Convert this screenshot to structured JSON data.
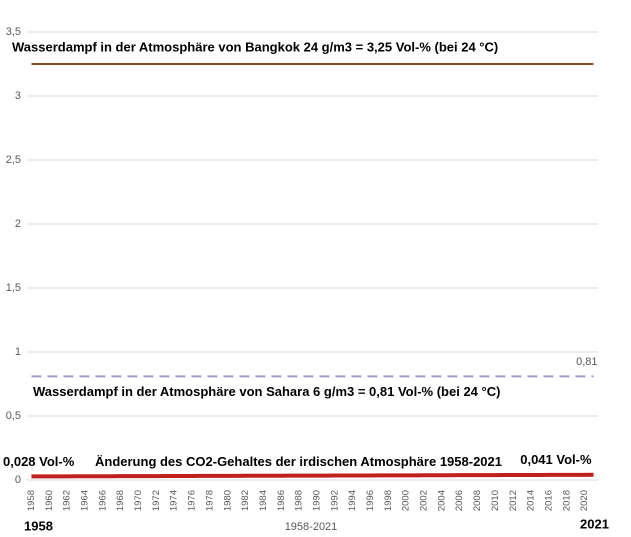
{
  "chart_data": {
    "type": "line",
    "x_label": "1958-2021",
    "start_label": "1958",
    "end_label": "2021",
    "categories": [
      1958,
      null,
      1960,
      null,
      1962,
      null,
      1964,
      null,
      1966,
      null,
      1968,
      null,
      1970,
      null,
      1972,
      null,
      1974,
      null,
      1976,
      null,
      1978,
      null,
      1980,
      null,
      1982,
      null,
      1984,
      null,
      1986,
      null,
      1988,
      null,
      1990,
      null,
      1992,
      null,
      1994,
      null,
      1996,
      null,
      1998,
      null,
      2000,
      null,
      2002,
      null,
      2004,
      null,
      2006,
      null,
      2008,
      null,
      2010,
      null,
      2012,
      null,
      2014,
      null,
      2016,
      null,
      2018,
      null,
      2020,
      null
    ],
    "series": [
      {
        "name": "Wasserdampf in der Atmosphäre von Bangkok 24 g/m3 = 3,25 Vol-% (bei 24 °C)",
        "color": "#8b4a2b",
        "dashed": false,
        "width": 2,
        "values": [
          3.25,
          3.25,
          3.25,
          3.25,
          3.25,
          3.25,
          3.25,
          3.25,
          3.25,
          3.25,
          3.25,
          3.25,
          3.25,
          3.25,
          3.25,
          3.25,
          3.25,
          3.25,
          3.25,
          3.25,
          3.25,
          3.25,
          3.25,
          3.25,
          3.25,
          3.25,
          3.25,
          3.25,
          3.25,
          3.25,
          3.25,
          3.25,
          3.25,
          3.25,
          3.25,
          3.25,
          3.25,
          3.25,
          3.25,
          3.25,
          3.25,
          3.25,
          3.25,
          3.25,
          3.25,
          3.25,
          3.25,
          3.25,
          3.25,
          3.25,
          3.25,
          3.25,
          3.25,
          3.25,
          3.25,
          3.25,
          3.25,
          3.25,
          3.25,
          3.25,
          3.25,
          3.25,
          3.25,
          3.25
        ]
      },
      {
        "name": "Wasserdampf in der Atmosphäre von Sahara 6 g/m3 = 0,81 Vol-% (bei 24 °C)",
        "color": "#9d9bc9",
        "dashed": true,
        "width": 2,
        "values": [
          0.81,
          0.81,
          0.81,
          0.81,
          0.81,
          0.81,
          0.81,
          0.81,
          0.81,
          0.81,
          0.81,
          0.81,
          0.81,
          0.81,
          0.81,
          0.81,
          0.81,
          0.81,
          0.81,
          0.81,
          0.81,
          0.81,
          0.81,
          0.81,
          0.81,
          0.81,
          0.81,
          0.81,
          0.81,
          0.81,
          0.81,
          0.81,
          0.81,
          0.81,
          0.81,
          0.81,
          0.81,
          0.81,
          0.81,
          0.81,
          0.81,
          0.81,
          0.81,
          0.81,
          0.81,
          0.81,
          0.81,
          0.81,
          0.81,
          0.81,
          0.81,
          0.81,
          0.81,
          0.81,
          0.81,
          0.81,
          0.81,
          0.81,
          0.81,
          0.81,
          0.81,
          0.81,
          0.81,
          0.81
        ],
        "value_labels": [
          null,
          null,
          null,
          null,
          null,
          null,
          null,
          null,
          null,
          null,
          null,
          null,
          null,
          null,
          null,
          null,
          null,
          null,
          null,
          null,
          null,
          null,
          null,
          null,
          null,
          null,
          null,
          null,
          null,
          null,
          null,
          null,
          null,
          null,
          null,
          null,
          null,
          null,
          null,
          null,
          null,
          null,
          null,
          null,
          null,
          null,
          null,
          null,
          null,
          null,
          null,
          null,
          null,
          null,
          null,
          null,
          null,
          null,
          null,
          null,
          null,
          null,
          null,
          "0,81"
        ]
      },
      {
        "name": "Änderung des CO2-Gehaltes der irdischen Atmosphäre 1958-2021",
        "color": "#c0201b",
        "dashed": false,
        "width": 4,
        "values": [
          0.028,
          0.028,
          0.028,
          0.028,
          0.028,
          0.029,
          0.029,
          0.029,
          0.029,
          0.029,
          0.03,
          0.03,
          0.03,
          0.03,
          0.03,
          0.031,
          0.031,
          0.031,
          0.031,
          0.032,
          0.032,
          0.032,
          0.032,
          0.032,
          0.033,
          0.033,
          0.033,
          0.033,
          0.033,
          0.034,
          0.034,
          0.034,
          0.034,
          0.034,
          0.035,
          0.035,
          0.035,
          0.035,
          0.035,
          0.036,
          0.036,
          0.036,
          0.036,
          0.036,
          0.037,
          0.037,
          0.037,
          0.037,
          0.038,
          0.038,
          0.038,
          0.038,
          0.038,
          0.039,
          0.039,
          0.039,
          0.039,
          0.039,
          0.04,
          0.04,
          0.04,
          0.04,
          0.04,
          0.041
        ],
        "value_labels": [
          "0,028 Vol-%",
          null,
          null,
          null,
          null,
          null,
          null,
          null,
          null,
          null,
          null,
          null,
          null,
          null,
          null,
          null,
          null,
          null,
          null,
          null,
          null,
          null,
          null,
          null,
          null,
          null,
          null,
          null,
          null,
          null,
          null,
          null,
          null,
          null,
          null,
          null,
          null,
          null,
          null,
          null,
          null,
          null,
          null,
          null,
          null,
          null,
          null,
          null,
          null,
          null,
          null,
          null,
          null,
          null,
          null,
          null,
          null,
          null,
          null,
          null,
          null,
          null,
          null,
          "0,041 Vol-%"
        ]
      }
    ],
    "ylim": [
      0,
      3.5
    ],
    "yticks": [
      0,
      {
        "value": 0.5,
        "label": "0,5"
      },
      1,
      {
        "value": 1.5,
        "label": "1,5"
      },
      2,
      {
        "value": 2.5,
        "label": "2,5"
      },
      3,
      {
        "value": 3.5,
        "label": "3,5"
      }
    ],
    "grid": true
  }
}
